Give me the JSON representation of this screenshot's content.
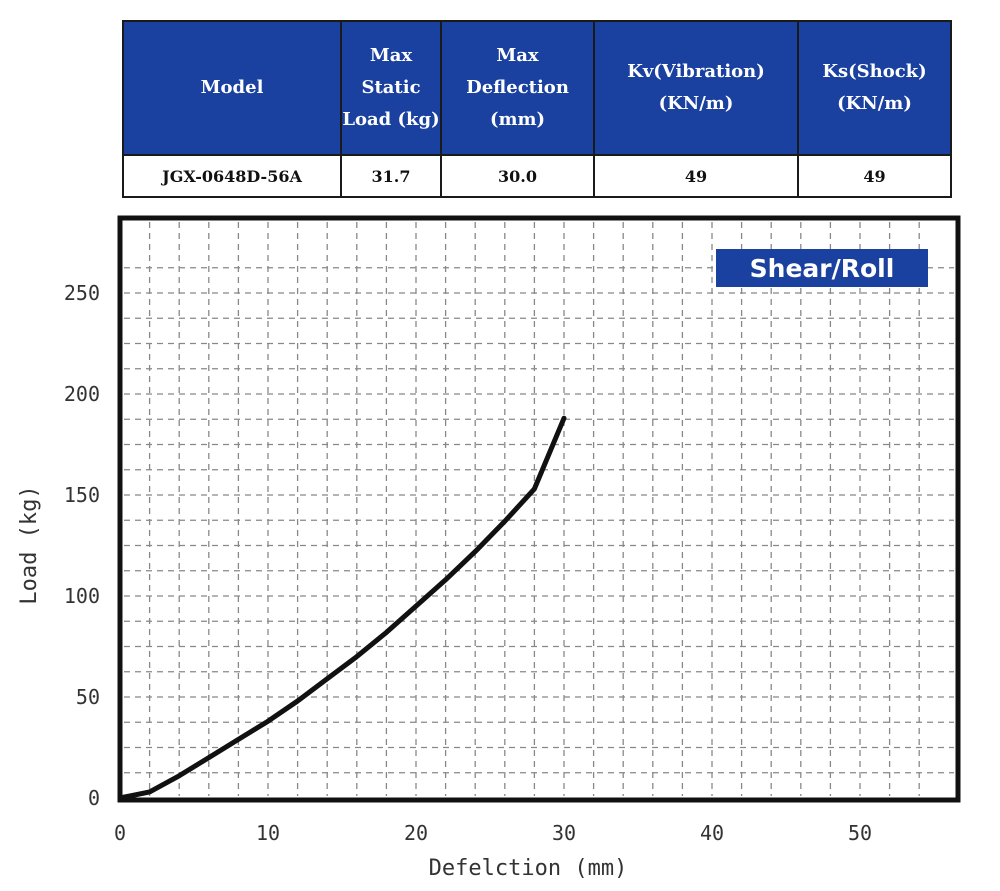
{
  "table": {
    "headers": [
      "Model",
      "Max Static Load (kg)",
      "Max Deflection (mm)",
      "Kv(Vibration) (KN/m)",
      "Ks(Shock) (KN/m)"
    ],
    "row": [
      "JGX-0648D-56A",
      "31.7",
      "30.0",
      "49",
      "49"
    ]
  },
  "chart_data": {
    "type": "line",
    "badge": "Shear/Roll",
    "xlabel": "Defelction (mm)",
    "ylabel": "Load (kg)",
    "xlim": [
      0,
      55
    ],
    "ylim": [
      0,
      275
    ],
    "x_ticks": [
      0,
      10,
      20,
      30,
      40,
      50
    ],
    "y_ticks": [
      0,
      50,
      100,
      150,
      200,
      250
    ],
    "grid": true,
    "series": [
      {
        "x": [
          0,
          2,
          4,
          6,
          8,
          10,
          12,
          14,
          16,
          18,
          20,
          22,
          24,
          26,
          28,
          30
        ],
        "y": [
          0,
          3,
          11,
          20,
          29,
          38,
          48,
          59,
          70,
          82,
          95,
          108,
          122,
          137,
          153,
          188
        ]
      }
    ],
    "colors": {
      "line": "#111111",
      "badge": "#1a41a0",
      "grid": "#888888"
    }
  }
}
